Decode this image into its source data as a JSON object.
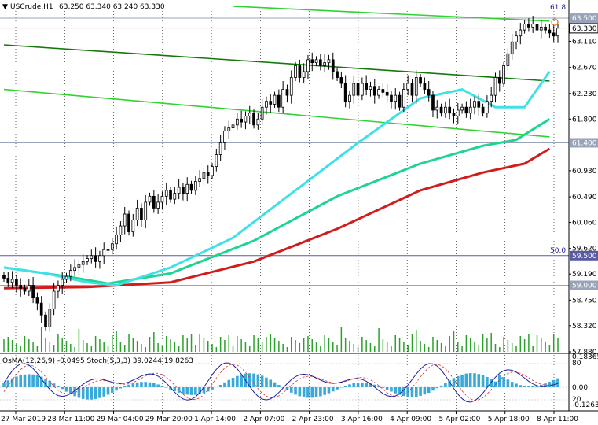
{
  "header": {
    "symbol": "USCrude,H1",
    "ohlc": "63.250 63.340 63.240 63.330"
  },
  "indicator": {
    "label": "OsMA(12,26,9) -0.0495 Stoch(5,3,3) 39.0244 19.8263",
    "scale_labels": [
      "0.18365",
      "80",
      "0.00",
      "20",
      "-0.12634"
    ]
  },
  "annotations": {
    "fib_top": "61.8",
    "fib_mid": "50.0"
  },
  "colors": {
    "background": "#ffffff",
    "candle": "#000000",
    "ema_fast": "#3fe0e6",
    "ema_mid": "#1ed492",
    "ema_slow": "#d21c1c",
    "channel": "#32d232",
    "channel_upper": "#14780a",
    "hline": "#9aa4b8",
    "level_blue": "#5a5aa0",
    "histogram": "#3aa9d8",
    "stoch_main": "#2020a0",
    "stoch_signal": "#d03030",
    "price_tag": "#9aa4b8"
  },
  "chart_data": {
    "type": "candlestick",
    "symbol": "USCrude",
    "timeframe": "H1",
    "y_axis_labels": [
      "63.500",
      "63.330",
      "63.110",
      "62.670",
      "62.230",
      "61.800",
      "61.400",
      "60.930",
      "60.490",
      "60.060",
      "59.620",
      "59.500",
      "59.190",
      "59.000",
      "58.750",
      "58.320",
      "57.880"
    ],
    "x_axis_labels": [
      "27 Mar 2019",
      "28 Mar 11:00",
      "29 Mar 04:00",
      "29 Mar 20:00",
      "1 Apr 14:00",
      "2 Apr 07:00",
      "2 Apr 23:00",
      "3 Apr 16:00",
      "4 Apr 09:00",
      "5 Apr 02:00",
      "5 Apr 18:00",
      "8 Apr 11:00"
    ],
    "horizontal_levels": [
      {
        "value": 63.5,
        "tag": "63.500"
      },
      {
        "value": 61.4,
        "tag": "61.400"
      },
      {
        "value": 59.5,
        "tag": "59.500"
      },
      {
        "value": 59.0,
        "tag": "59.000"
      }
    ],
    "current_price": {
      "value": 63.33,
      "tag": "63.330"
    },
    "closes": [
      59.12,
      59.05,
      59.1,
      59.0,
      58.95,
      58.9,
      59.0,
      58.8,
      58.7,
      58.5,
      58.3,
      58.6,
      58.9,
      59.0,
      59.1,
      59.15,
      59.25,
      59.3,
      59.35,
      59.4,
      59.45,
      59.5,
      59.4,
      59.5,
      59.6,
      59.6,
      59.7,
      59.85,
      60.0,
      60.2,
      59.9,
      60.1,
      60.3,
      60.1,
      60.4,
      60.5,
      60.3,
      60.4,
      60.5,
      60.6,
      60.45,
      60.55,
      60.65,
      60.55,
      60.7,
      60.6,
      60.75,
      60.8,
      60.9,
      60.85,
      61.0,
      61.2,
      61.4,
      61.6,
      61.65,
      61.7,
      61.8,
      61.75,
      61.85,
      61.9,
      61.7,
      61.8,
      62.0,
      62.1,
      62.05,
      62.2,
      62.0,
      62.3,
      62.2,
      62.5,
      62.7,
      62.5,
      62.6,
      62.8,
      62.75,
      62.8,
      62.7,
      62.75,
      62.8,
      62.6,
      62.5,
      62.4,
      62.1,
      62.2,
      62.4,
      62.2,
      62.4,
      62.3,
      62.35,
      62.2,
      62.3,
      62.25,
      62.2,
      62.1,
      62.2,
      62.0,
      62.3,
      62.4,
      62.2,
      62.5,
      62.4,
      62.3,
      62.2,
      61.95,
      62.0,
      61.9,
      62.0,
      61.9,
      61.85,
      61.95,
      62.0,
      61.9,
      62.0,
      62.1,
      62.0,
      61.9,
      62.1,
      62.2,
      62.5,
      62.4,
      62.7,
      62.9,
      63.1,
      63.2,
      63.3,
      63.4,
      63.35,
      63.4,
      63.3,
      63.35,
      63.3,
      63.25,
      63.2,
      63.33
    ],
    "series": [
      {
        "name": "EMA fast",
        "color": "ema_fast"
      },
      {
        "name": "EMA mid",
        "color": "ema_mid"
      },
      {
        "name": "EMA slow",
        "color": "ema_slow"
      }
    ],
    "ema_fast_path": [
      [
        0,
        59.3
      ],
      [
        10,
        59.2
      ],
      [
        20,
        59.05
      ],
      [
        27,
        59.0
      ],
      [
        40,
        59.3
      ],
      [
        55,
        59.8
      ],
      [
        70,
        60.6
      ],
      [
        85,
        61.4
      ],
      [
        100,
        62.15
      ],
      [
        110,
        62.3
      ],
      [
        118,
        62.0
      ],
      [
        125,
        62.0
      ],
      [
        131,
        62.6
      ]
    ],
    "ema_mid_path": [
      [
        0,
        59.3
      ],
      [
        15,
        59.15
      ],
      [
        25,
        59.03
      ],
      [
        40,
        59.2
      ],
      [
        60,
        59.75
      ],
      [
        80,
        60.5
      ],
      [
        100,
        61.05
      ],
      [
        115,
        61.35
      ],
      [
        123,
        61.45
      ],
      [
        131,
        61.8
      ]
    ],
    "ema_slow_path": [
      [
        0,
        58.95
      ],
      [
        20,
        58.97
      ],
      [
        40,
        59.05
      ],
      [
        60,
        59.4
      ],
      [
        80,
        59.95
      ],
      [
        100,
        60.6
      ],
      [
        115,
        60.9
      ],
      [
        125,
        61.05
      ],
      [
        131,
        61.3
      ]
    ],
    "channel_lines": [
      {
        "from": [
          0,
          63.05
        ],
        "to": [
          131,
          62.44
        ],
        "style": "upper"
      },
      {
        "from": [
          0,
          62.3
        ],
        "to": [
          131,
          61.5
        ],
        "style": "lower"
      },
      {
        "from": [
          55,
          63.7
        ],
        "to": [
          131,
          63.45
        ],
        "style": "lower"
      }
    ],
    "ylim": [
      57.88,
      63.62
    ]
  }
}
